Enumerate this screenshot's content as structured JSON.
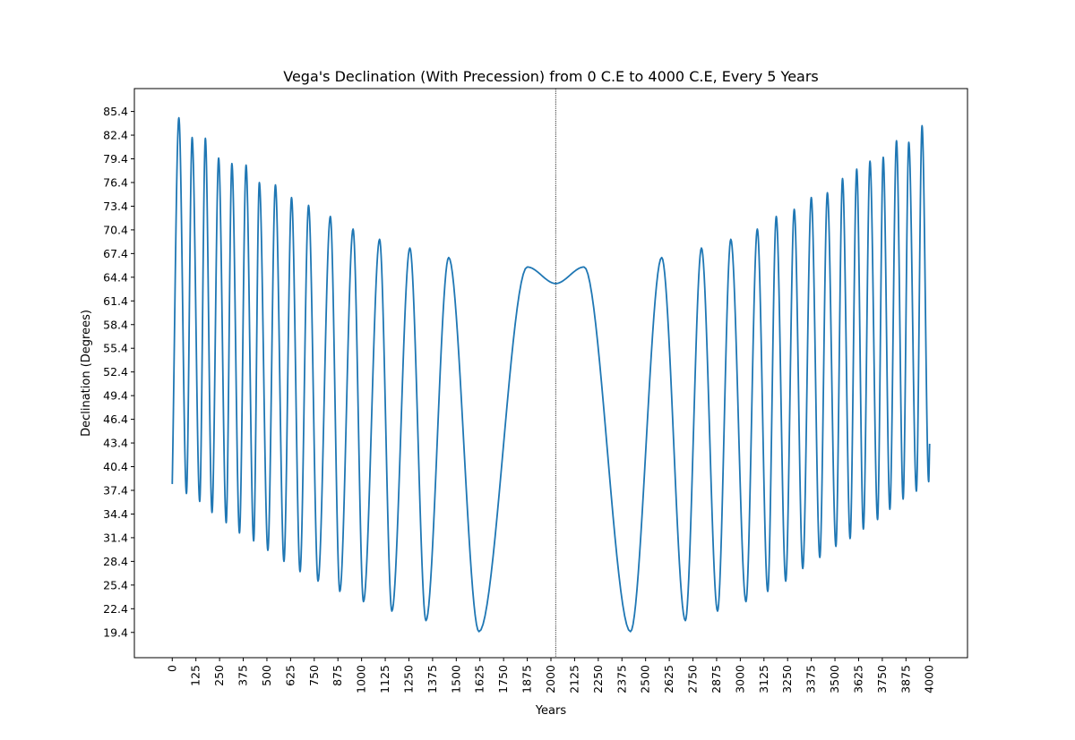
{
  "chart_data": {
    "type": "line",
    "title": "Vega's Declination (With Precession) from 0 C.E to 4000 C.E, Every 5 Years",
    "xlabel": "Years",
    "ylabel": "Declination (Degrees)",
    "xlim": [
      -200,
      4200
    ],
    "ylim": [
      16.2,
      88.3
    ],
    "x_ticks": [
      "0",
      "125",
      "250",
      "375",
      "500",
      "625",
      "750",
      "875",
      "1000",
      "1125",
      "1250",
      "1375",
      "1500",
      "1625",
      "1750",
      "1875",
      "2000",
      "2125",
      "2250",
      "2375",
      "2500",
      "2625",
      "2750",
      "2875",
      "3000",
      "3125",
      "3250",
      "3375",
      "3500",
      "3625",
      "3750",
      "3875",
      "4000"
    ],
    "y_ticks": [
      "19.4",
      "22.4",
      "25.4",
      "28.4",
      "31.4",
      "34.4",
      "37.4",
      "40.4",
      "43.4",
      "46.4",
      "49.4",
      "52.4",
      "55.4",
      "58.4",
      "61.4",
      "64.4",
      "67.4",
      "70.4",
      "73.4",
      "76.4",
      "79.4",
      "82.4",
      "85.4"
    ],
    "vertical_line": {
      "x": 2025,
      "style": "dotted",
      "color": "#000000"
    },
    "grid": false,
    "line_color": "#1f77b4",
    "series": [
      {
        "points": [
          [
            0,
            38.2
          ],
          [
            35,
            84.6
          ],
          [
            75,
            37.0
          ],
          [
            105,
            82.1
          ],
          [
            145,
            36.0
          ],
          [
            175,
            82.0
          ],
          [
            210,
            34.6
          ],
          [
            245,
            79.5
          ],
          [
            285,
            33.3
          ],
          [
            315,
            78.8
          ],
          [
            355,
            32.0
          ],
          [
            390,
            78.6
          ],
          [
            430,
            31.0
          ],
          [
            460,
            76.4
          ],
          [
            505,
            29.8
          ],
          [
            545,
            76.1
          ],
          [
            590,
            28.4
          ],
          [
            630,
            74.5
          ],
          [
            675,
            27.1
          ],
          [
            720,
            73.5
          ],
          [
            770,
            25.9
          ],
          [
            835,
            72.1
          ],
          [
            885,
            24.6
          ],
          [
            955,
            70.5
          ],
          [
            1010,
            23.3
          ],
          [
            1095,
            69.2
          ],
          [
            1160,
            22.1
          ],
          [
            1255,
            68.1
          ],
          [
            1340,
            20.9
          ],
          [
            1460,
            66.9
          ],
          [
            1620,
            19.5
          ],
          [
            1875,
            65.7
          ],
          [
            2025,
            63.6
          ],
          [
            2175,
            65.7
          ],
          [
            2420,
            19.5
          ],
          [
            2585,
            66.9
          ],
          [
            2710,
            20.9
          ],
          [
            2795,
            68.1
          ],
          [
            2880,
            22.1
          ],
          [
            2950,
            69.2
          ],
          [
            3030,
            23.3
          ],
          [
            3090,
            70.5
          ],
          [
            3145,
            24.6
          ],
          [
            3190,
            72.1
          ],
          [
            3240,
            25.9
          ],
          [
            3285,
            73.0
          ],
          [
            3330,
            27.5
          ],
          [
            3375,
            74.5
          ],
          [
            3420,
            28.9
          ],
          [
            3460,
            75.1
          ],
          [
            3505,
            30.3
          ],
          [
            3540,
            76.9
          ],
          [
            3580,
            31.3
          ],
          [
            3615,
            78.1
          ],
          [
            3650,
            32.5
          ],
          [
            3685,
            79.1
          ],
          [
            3725,
            33.7
          ],
          [
            3755,
            79.6
          ],
          [
            3790,
            35.0
          ],
          [
            3825,
            81.7
          ],
          [
            3860,
            36.3
          ],
          [
            3890,
            81.5
          ],
          [
            3930,
            37.3
          ],
          [
            3960,
            83.6
          ],
          [
            3995,
            38.5
          ],
          [
            4000,
            43.3
          ]
        ]
      }
    ]
  }
}
